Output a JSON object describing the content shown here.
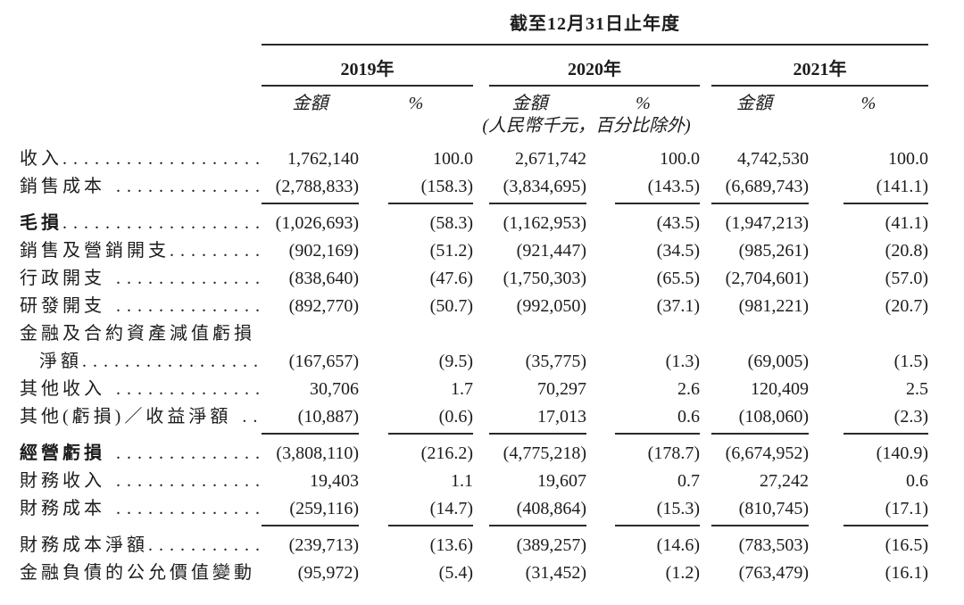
{
  "colors": {
    "background": "#ffffff",
    "text": "#1c1c1c",
    "rule": "#2a2a2a"
  },
  "table": {
    "period_header": "截至12月31日止年度",
    "unit_note": "(人民幣千元，百分比除外)",
    "year_groups": [
      {
        "year": "2019年",
        "amount_label": "金額",
        "pct_label": "%"
      },
      {
        "year": "2020年",
        "amount_label": "金額",
        "pct_label": "%"
      },
      {
        "year": "2021年",
        "amount_label": "金額",
        "pct_label": "%"
      }
    ],
    "rows": [
      {
        "label": "收入",
        "dots": "...................",
        "bold": false,
        "indent": false,
        "underline_after": false,
        "values": [
          "1,762,140",
          "100.0",
          "2,671,742",
          "100.0",
          "4,742,530",
          "100.0"
        ]
      },
      {
        "label": "銷售成本",
        "dots": " ...............",
        "bold": false,
        "indent": false,
        "underline_after": true,
        "values": [
          "(2,788,833)",
          "(158.3)",
          "(3,834,695)",
          "(143.5)",
          "(6,689,743)",
          "(141.1)"
        ]
      },
      {
        "label": "毛損",
        "dots": "...................",
        "bold": true,
        "indent": false,
        "underline_after": false,
        "values": [
          "(1,026,693)",
          "(58.3)",
          "(1,162,953)",
          "(43.5)",
          "(1,947,213)",
          "(41.1)"
        ]
      },
      {
        "label": "銷售及營銷開支",
        "dots": ".........",
        "bold": false,
        "indent": false,
        "underline_after": false,
        "values": [
          "(902,169)",
          "(51.2)",
          "(921,447)",
          "(34.5)",
          "(985,261)",
          "(20.8)"
        ]
      },
      {
        "label": "行政開支",
        "dots": " ...............",
        "bold": false,
        "indent": false,
        "underline_after": false,
        "values": [
          "(838,640)",
          "(47.6)",
          "(1,750,303)",
          "(65.5)",
          "(2,704,601)",
          "(57.0)"
        ]
      },
      {
        "label": "研發開支",
        "dots": " ...............",
        "bold": false,
        "indent": false,
        "underline_after": false,
        "values": [
          "(892,770)",
          "(50.7)",
          "(992,050)",
          "(37.1)",
          "(981,221)",
          "(20.7)"
        ]
      },
      {
        "label": "金融及合約資產減值虧損",
        "dots": "",
        "bold": false,
        "indent": false,
        "underline_after": false,
        "values": [
          "",
          "",
          "",
          "",
          "",
          ""
        ]
      },
      {
        "label": "淨額",
        "dots": "..................",
        "bold": false,
        "indent": true,
        "underline_after": false,
        "values": [
          "(167,657)",
          "(9.5)",
          "(35,775)",
          "(1.3)",
          "(69,005)",
          "(1.5)"
        ]
      },
      {
        "label": "其他收入",
        "dots": " ...............",
        "bold": false,
        "indent": false,
        "underline_after": false,
        "values": [
          "30,706",
          "1.7",
          "70,297",
          "2.6",
          "120,409",
          "2.5"
        ]
      },
      {
        "label": "其他(虧損)／收益淨額",
        "dots": " ..",
        "bold": false,
        "indent": false,
        "underline_after": true,
        "values": [
          "(10,887)",
          "(0.6)",
          "17,013",
          "0.6",
          "(108,060)",
          "(2.3)"
        ]
      },
      {
        "label": "經營虧損",
        "dots": " ..............",
        "bold": true,
        "indent": false,
        "underline_after": false,
        "values": [
          "(3,808,110)",
          "(216.2)",
          "(4,775,218)",
          "(178.7)",
          "(6,674,952)",
          "(140.9)"
        ]
      },
      {
        "label": "財務收入",
        "dots": " ...............",
        "bold": false,
        "indent": false,
        "underline_after": false,
        "values": [
          "19,403",
          "1.1",
          "19,607",
          "0.7",
          "27,242",
          "0.6"
        ]
      },
      {
        "label": "財務成本",
        "dots": " ...............",
        "bold": false,
        "indent": false,
        "underline_after": true,
        "values": [
          "(259,116)",
          "(14.7)",
          "(408,864)",
          "(15.3)",
          "(810,745)",
          "(17.1)"
        ]
      },
      {
        "label": "財務成本淨額",
        "dots": "...........",
        "bold": false,
        "indent": false,
        "underline_after": false,
        "values": [
          "(239,713)",
          "(13.6)",
          "(389,257)",
          "(14.6)",
          "(783,503)",
          "(16.5)"
        ]
      },
      {
        "label": "金融負債的公允價值變動",
        "dots": "",
        "bold": false,
        "indent": false,
        "underline_after": false,
        "values": [
          "(95,972)",
          "(5.4)",
          "(31,452)",
          "(1.2)",
          "(763,479)",
          "(16.1)"
        ]
      }
    ]
  }
}
